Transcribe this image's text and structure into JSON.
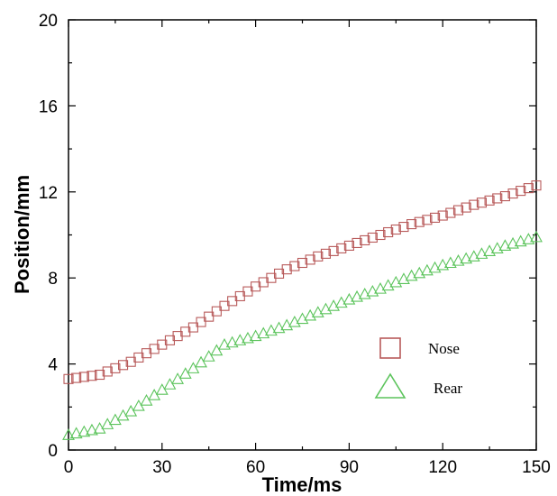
{
  "chart_data": {
    "type": "scatter",
    "xlabel": "Time/ms",
    "ylabel": "Position/mm",
    "xlim": [
      0,
      150
    ],
    "ylim": [
      0,
      20
    ],
    "xticks": [
      "0",
      "30",
      "60",
      "90",
      "120",
      "150"
    ],
    "yticks": [
      "0",
      "4",
      "8",
      "12",
      "16",
      "20"
    ],
    "grid": false,
    "legend_position": "lower-right",
    "series": [
      {
        "name": "Nose",
        "marker": "square",
        "color": "#b85a5a",
        "x": [
          0,
          10,
          20,
          30,
          40,
          50,
          60,
          70,
          80,
          90,
          100,
          110,
          120,
          130,
          140,
          150
        ],
        "y": [
          3.3,
          3.5,
          4.1,
          4.9,
          5.7,
          6.7,
          7.6,
          8.4,
          9.0,
          9.5,
          10.0,
          10.5,
          10.9,
          11.4,
          11.8,
          12.3
        ]
      },
      {
        "name": "Rear",
        "marker": "triangle",
        "color": "#5cc45c",
        "x": [
          0,
          10,
          20,
          30,
          40,
          50,
          60,
          70,
          80,
          90,
          100,
          110,
          120,
          130,
          140,
          150
        ],
        "y": [
          0.7,
          1.0,
          1.8,
          2.8,
          3.8,
          4.9,
          5.3,
          5.8,
          6.4,
          7.0,
          7.5,
          8.1,
          8.6,
          9.0,
          9.5,
          9.9
        ]
      }
    ]
  }
}
